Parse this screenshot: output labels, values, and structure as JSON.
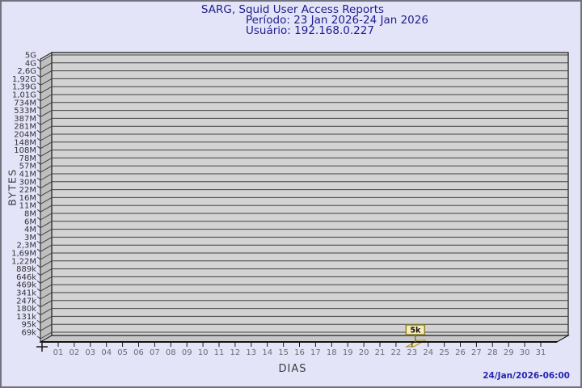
{
  "header": {
    "title": "SARG, Squid User Access Reports",
    "period": "Período: 23 Jan 2026-24 Jan 2026",
    "user": "Usuário: 192.168.0.227"
  },
  "footer": {
    "timestamp": "24/Jan/2026-06:00"
  },
  "chart_data": {
    "type": "bar",
    "title": "SARG, Squid User Access Reports",
    "subtitle": [
      "Período: 23 Jan 2026-24 Jan 2026",
      "Usuário: 192.168.0.227"
    ],
    "xlabel": "DIAS",
    "ylabel": "BYTES",
    "y_scale": "log",
    "grid": "horizontal",
    "legend": null,
    "style": "3d-bar",
    "y_tick_labels": [
      "5G",
      "4G",
      "2,6G",
      "1,92G",
      "1,39G",
      "1,01G",
      "734M",
      "533M",
      "387M",
      "281M",
      "204M",
      "148M",
      "108M",
      "78M",
      "57M",
      "41M",
      "30M",
      "22M",
      "16M",
      "11M",
      "8M",
      "6M",
      "4M",
      "3M",
      "2,3M",
      "1,69M",
      "1,22M",
      "889k",
      "646k",
      "469k",
      "341k",
      "247k",
      "180k",
      "131k",
      "95k",
      "69k"
    ],
    "categories": [
      "01",
      "02",
      "03",
      "04",
      "05",
      "06",
      "07",
      "08",
      "09",
      "10",
      "11",
      "12",
      "13",
      "14",
      "15",
      "16",
      "17",
      "18",
      "19",
      "20",
      "21",
      "22",
      "23",
      "24",
      "25",
      "26",
      "27",
      "28",
      "29",
      "30",
      "31"
    ],
    "values": [
      0,
      0,
      0,
      0,
      0,
      0,
      0,
      0,
      0,
      0,
      0,
      0,
      0,
      0,
      0,
      0,
      0,
      0,
      0,
      0,
      0,
      0,
      5000,
      0,
      0,
      0,
      0,
      0,
      0,
      0,
      0
    ],
    "annotations": [
      {
        "category": "23",
        "text": "5k",
        "value": 5000
      }
    ],
    "colors": {
      "background": "#e4e4f8",
      "plot_back": "#d3d3d3",
      "plot_wall": "#bfbfbf",
      "plot_floor": "#c7c7c7",
      "plot_border": "#141414",
      "gridline": "#424242",
      "bar": "#f5e594",
      "bar_outline": "#99893a",
      "annotation_bg": "#f4ecbc",
      "annotation_border": "#8f8431",
      "annotation_text": "#111111",
      "axis_text": "#323238",
      "day_text": "#6a6a72",
      "title_color": "#1d1d8f",
      "timestamp_color": "#2626b2"
    }
  }
}
